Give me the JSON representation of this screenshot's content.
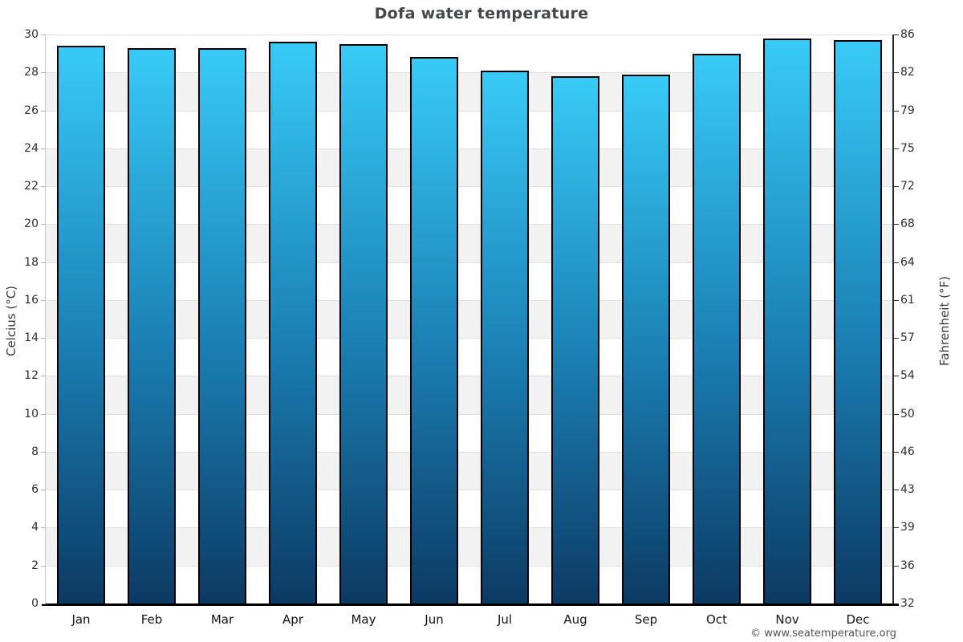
{
  "chart_data": {
    "type": "bar",
    "title": "Dofa water temperature",
    "categories": [
      "Jan",
      "Feb",
      "Mar",
      "Apr",
      "May",
      "Jun",
      "Jul",
      "Aug",
      "Sep",
      "Oct",
      "Nov",
      "Dec"
    ],
    "values": [
      29.4,
      29.3,
      29.3,
      29.6,
      29.5,
      28.8,
      28.1,
      27.8,
      27.9,
      29.0,
      29.8,
      29.7
    ],
    "xlabel": "",
    "ylabel_left": "Celcius (°C)",
    "ylabel_right": "Fahrenheit (°F)",
    "ylim": [
      0,
      30
    ],
    "ytick_step": 2,
    "yticks_left": [
      0,
      2,
      4,
      6,
      8,
      10,
      12,
      14,
      16,
      18,
      20,
      22,
      24,
      26,
      28,
      30
    ],
    "yticks_right": [
      32,
      36,
      39,
      43,
      46,
      50,
      54,
      57,
      61,
      64,
      68,
      72,
      75,
      79,
      82,
      86
    ],
    "grid": true,
    "legend_position": "none",
    "footer": "© www.seatemperature.org",
    "colors": {
      "bar_top": "#38cbf7",
      "bar_mid": "#1b81b6",
      "bar_bottom": "#0c3a63",
      "bar_border": "#000000",
      "band_light": "#ffffff",
      "band_dark": "#f2f2f2",
      "gridline": "#e0e0e0",
      "tick_mark_left": "#b5b5b5",
      "tick_mark_right": "#2b2b2b",
      "title_text": "#43474c",
      "axis_text": "#2e2e2e",
      "footer_text": "#555555"
    }
  }
}
